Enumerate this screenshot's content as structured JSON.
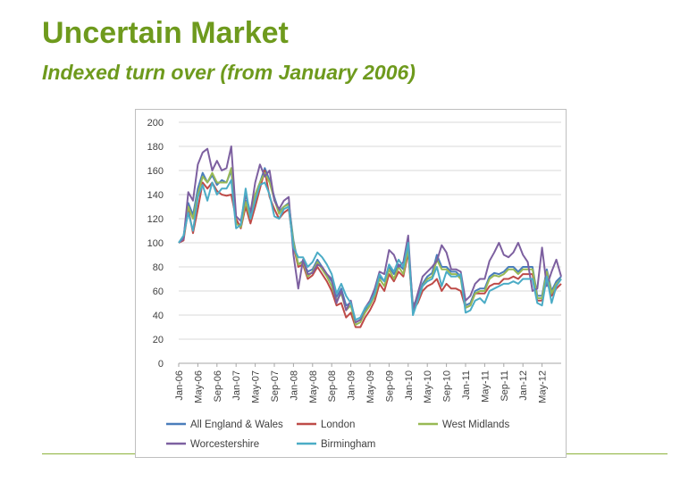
{
  "slide": {
    "title": "Uncertain Market",
    "subtitle": "Indexed turn over (from January 2006)"
  },
  "colors": {
    "heading": "#6e9a1d",
    "rule": "#8cb33c"
  },
  "chart_data": {
    "type": "line",
    "title": "",
    "xlabel": "",
    "ylabel": "",
    "ylim": [
      0,
      200
    ],
    "yticks": [
      0,
      20,
      40,
      60,
      80,
      100,
      120,
      140,
      160,
      180,
      200
    ],
    "grid": true,
    "legend_position": "bottom",
    "x_tick_labels": [
      "Jan-06",
      "May-06",
      "Sep-06",
      "Jan-07",
      "May-07",
      "Sep-07",
      "Jan-08",
      "May-08",
      "Sep-08",
      "Jan-09",
      "May-09",
      "Sep-09",
      "Jan-10",
      "May-10",
      "Sep-10",
      "Jan-11",
      "May-11",
      "Sep-11",
      "Jan-12",
      "May-12"
    ],
    "x_tick_month_index": [
      0,
      4,
      8,
      12,
      16,
      20,
      24,
      28,
      32,
      36,
      40,
      44,
      48,
      52,
      56,
      60,
      64,
      68,
      72,
      76
    ],
    "series": [
      {
        "name": "All England & Wales",
        "color": "#4a7ebb",
        "values": [
          100,
          105,
          133,
          123,
          145,
          158,
          150,
          156,
          148,
          152,
          150,
          160,
          118,
          114,
          135,
          122,
          140,
          150,
          162,
          152,
          138,
          126,
          130,
          133,
          102,
          82,
          85,
          76,
          78,
          86,
          80,
          74,
          68,
          55,
          62,
          48,
          50,
          34,
          36,
          44,
          50,
          58,
          72,
          68,
          80,
          74,
          82,
          78,
          98,
          48,
          54,
          66,
          72,
          75,
          90,
          80,
          80,
          76,
          76,
          72,
          48,
          50,
          60,
          62,
          62,
          72,
          75,
          74,
          76,
          80,
          80,
          76,
          80,
          80,
          80,
          56,
          56,
          78,
          60,
          68,
          72
        ]
      },
      {
        "name": "London",
        "color": "#be4b48",
        "values": [
          100,
          102,
          128,
          108,
          128,
          150,
          145,
          150,
          143,
          140,
          139,
          140,
          120,
          112,
          130,
          116,
          130,
          145,
          160,
          138,
          128,
          120,
          125,
          128,
          98,
          80,
          82,
          70,
          73,
          80,
          74,
          68,
          60,
          48,
          50,
          38,
          42,
          30,
          30,
          38,
          44,
          52,
          66,
          60,
          74,
          68,
          76,
          72,
          92,
          44,
          50,
          60,
          64,
          66,
          70,
          60,
          66,
          62,
          62,
          60,
          46,
          48,
          58,
          58,
          58,
          64,
          66,
          66,
          70,
          70,
          72,
          70,
          74,
          74,
          74,
          52,
          52,
          74,
          56,
          62,
          66
        ]
      },
      {
        "name": "West Midlands",
        "color": "#98b954",
        "values": [
          100,
          104,
          130,
          120,
          140,
          155,
          150,
          158,
          150,
          150,
          150,
          162,
          116,
          113,
          134,
          120,
          140,
          150,
          158,
          150,
          136,
          124,
          130,
          132,
          100,
          82,
          84,
          72,
          76,
          84,
          78,
          72,
          64,
          52,
          58,
          44,
          48,
          32,
          34,
          42,
          48,
          56,
          70,
          64,
          78,
          70,
          80,
          74,
          95,
          46,
          52,
          64,
          70,
          72,
          86,
          78,
          78,
          74,
          74,
          70,
          46,
          48,
          58,
          60,
          60,
          70,
          73,
          72,
          74,
          78,
          78,
          74,
          78,
          78,
          78,
          54,
          54,
          76,
          58,
          66,
          70
        ]
      },
      {
        "name": "Worcestershire",
        "color": "#7d60a0",
        "values": [
          100,
          103,
          142,
          135,
          165,
          175,
          178,
          160,
          168,
          160,
          162,
          180,
          122,
          118,
          140,
          125,
          150,
          165,
          155,
          160,
          135,
          128,
          135,
          138,
          90,
          62,
          86,
          74,
          75,
          82,
          80,
          74,
          70,
          50,
          60,
          44,
          52,
          34,
          36,
          46,
          52,
          62,
          76,
          74,
          94,
          90,
          80,
          84,
          106,
          44,
          58,
          72,
          76,
          80,
          85,
          98,
          92,
          78,
          78,
          76,
          52,
          56,
          66,
          70,
          70,
          85,
          92,
          100,
          90,
          88,
          92,
          100,
          90,
          84,
          60,
          62,
          96,
          64,
          76,
          86,
          72
        ]
      },
      {
        "name": "Birmingham",
        "color": "#4bacc6",
        "values": [
          100,
          106,
          125,
          110,
          138,
          148,
          135,
          150,
          140,
          145,
          145,
          152,
          112,
          115,
          145,
          120,
          135,
          148,
          150,
          140,
          122,
          120,
          128,
          130,
          96,
          88,
          88,
          80,
          84,
          92,
          88,
          82,
          74,
          58,
          66,
          56,
          50,
          36,
          38,
          46,
          50,
          58,
          74,
          68,
          82,
          76,
          86,
          80,
          100,
          40,
          52,
          64,
          68,
          70,
          80,
          64,
          76,
          72,
          72,
          74,
          42,
          44,
          52,
          54,
          50,
          60,
          62,
          64,
          66,
          66,
          68,
          66,
          70,
          70,
          70,
          50,
          48,
          72,
          50,
          64,
          70
        ]
      }
    ]
  }
}
